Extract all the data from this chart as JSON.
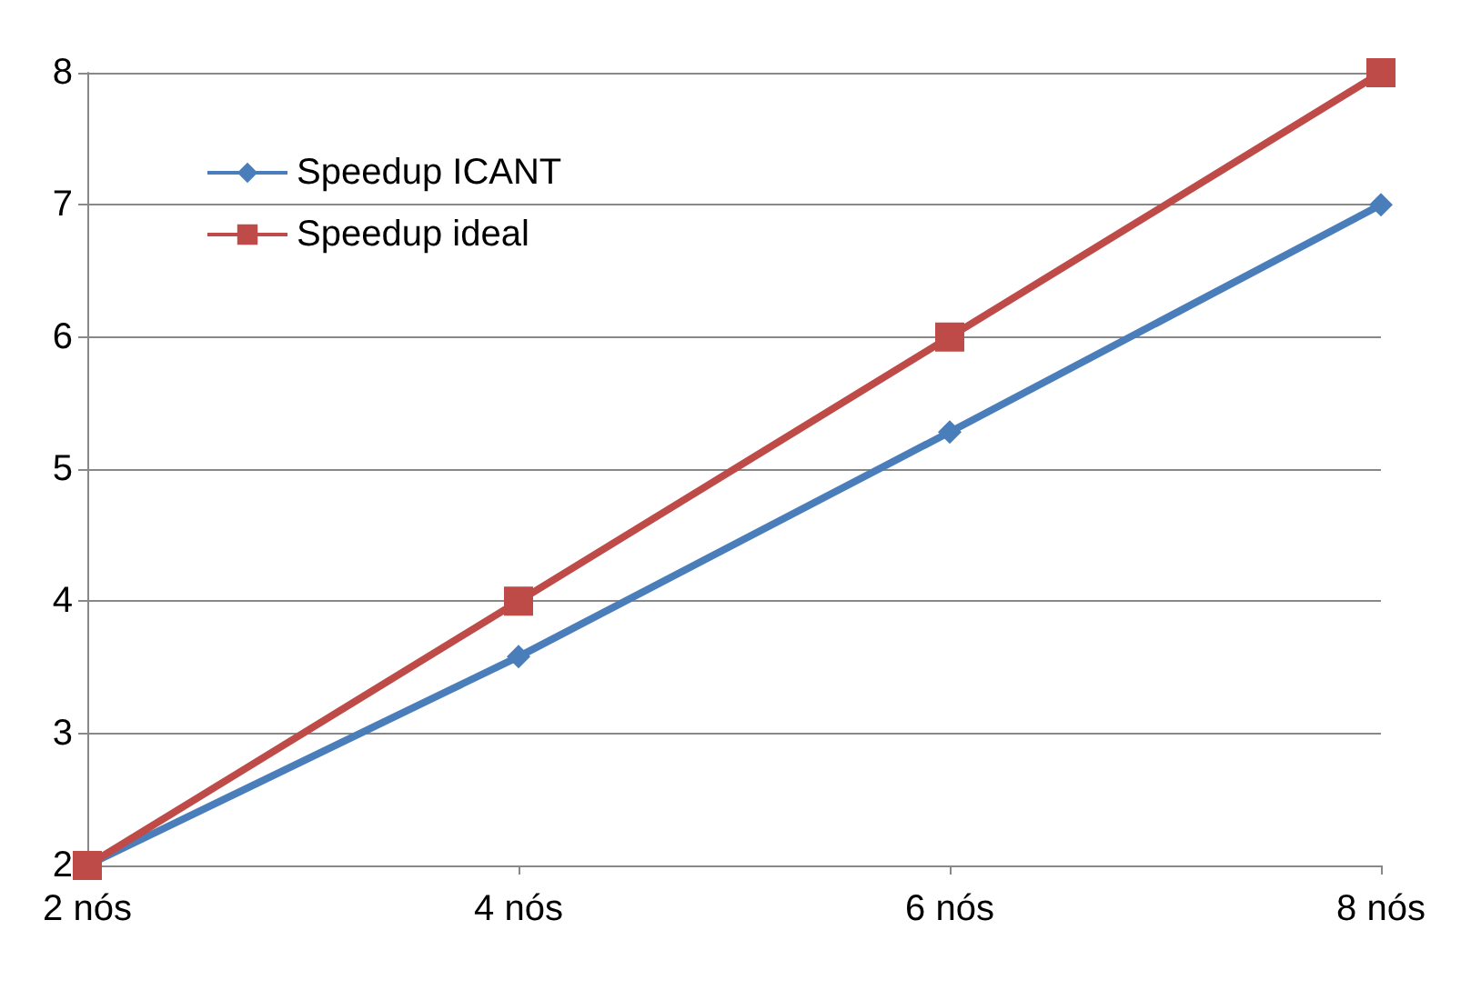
{
  "chart_data": {
    "type": "line",
    "categories": [
      "2 nós",
      "4 nós",
      "6 nós",
      "8 nós"
    ],
    "series": [
      {
        "name": "Speedup ICANT",
        "color": "#4a7ebb",
        "marker": "diamond",
        "values": [
          2,
          3.58,
          5.28,
          7.0
        ]
      },
      {
        "name": "Speedup ideal",
        "color": "#be4b48",
        "marker": "square",
        "values": [
          2,
          4,
          6,
          8
        ]
      }
    ],
    "ylim": [
      2,
      8
    ],
    "yticks": [
      2,
      3,
      4,
      5,
      6,
      7,
      8
    ],
    "grid": "y",
    "legend": "top left"
  }
}
